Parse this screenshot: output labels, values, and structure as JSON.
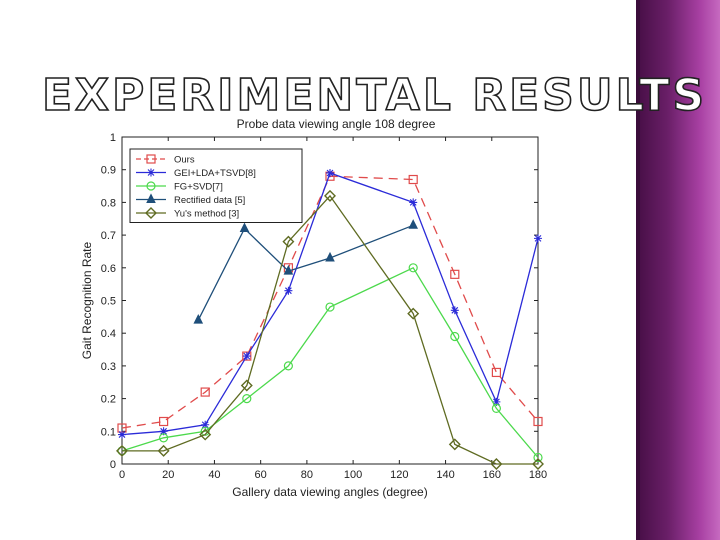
{
  "slide": {
    "title": "EXPERIMENTAL RESULTS"
  },
  "colors": {
    "background": "#ffffff",
    "title_fill": "#ffffff",
    "title_stroke": "#222222",
    "side_band": "#7a2678"
  },
  "chart_data": {
    "type": "line",
    "title": "Probe data viewing angle 108 degree",
    "xlabel": "Gallery data viewing angles (degree)",
    "ylabel": "Gait Recognition Rate",
    "xlim": [
      0,
      180
    ],
    "ylim": [
      0,
      1
    ],
    "xticks": [
      0,
      20,
      40,
      60,
      80,
      100,
      120,
      140,
      160,
      180
    ],
    "yticks": [
      0,
      0.1,
      0.2,
      0.3,
      0.4,
      0.5,
      0.6,
      0.7,
      0.8,
      0.9,
      1
    ],
    "grid": false,
    "legend_position": "top-left",
    "series": [
      {
        "name": "Ours",
        "color": "#e04b4b",
        "marker": "square",
        "dash": "dashed",
        "x": [
          0,
          18,
          36,
          54,
          72,
          90,
          126,
          144,
          162,
          180
        ],
        "y": [
          0.11,
          0.13,
          0.22,
          0.33,
          0.6,
          0.88,
          0.87,
          0.58,
          0.28,
          0.13
        ]
      },
      {
        "name": "GEI+LDA+TSVD[8]",
        "color": "#2b2bd8",
        "marker": "star",
        "dash": "solid",
        "x": [
          0,
          18,
          36,
          54,
          72,
          90,
          126,
          144,
          162,
          180
        ],
        "y": [
          0.09,
          0.1,
          0.12,
          0.33,
          0.53,
          0.89,
          0.8,
          0.47,
          0.19,
          0.69
        ]
      },
      {
        "name": "FG+SVD[7]",
        "color": "#4cd94c",
        "marker": "circle",
        "dash": "solid",
        "x": [
          0,
          18,
          36,
          54,
          72,
          90,
          126,
          144,
          162,
          180
        ],
        "y": [
          0.04,
          0.08,
          0.1,
          0.2,
          0.3,
          0.48,
          0.6,
          0.39,
          0.17,
          0.02
        ]
      },
      {
        "name": "Rectified data [5]",
        "color": "#1f4f7a",
        "marker": "triangle",
        "dash": "solid",
        "x": [
          33,
          53,
          72,
          90,
          126
        ],
        "y": [
          0.44,
          0.72,
          0.59,
          0.63,
          0.73
        ]
      },
      {
        "name": "Yu's method [3]",
        "color": "#5f6b22",
        "marker": "diamond",
        "dash": "solid",
        "x": [
          0,
          18,
          36,
          54,
          72,
          90,
          126,
          144,
          162,
          180
        ],
        "y": [
          0.04,
          0.04,
          0.09,
          0.24,
          0.68,
          0.82,
          0.46,
          0.06,
          0.0,
          0.0
        ]
      }
    ]
  }
}
